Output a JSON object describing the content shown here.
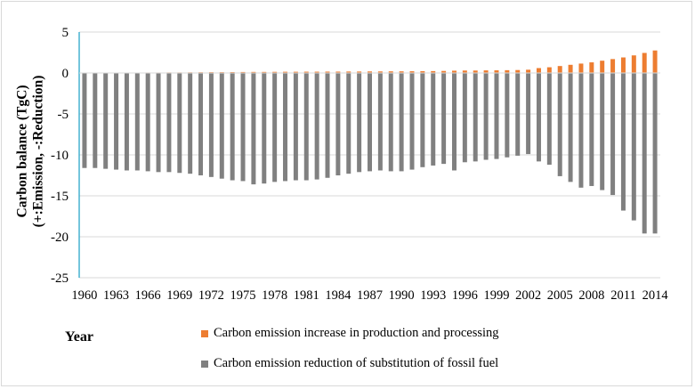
{
  "chart_data": {
    "type": "bar",
    "ylabel_line1": "Carbon balance (TgC)",
    "ylabel_line2": "(+:Emission, -:Reduction)",
    "xlabel": "Year",
    "ylim": [
      -25,
      5
    ],
    "yticks": [
      5,
      0,
      -5,
      -10,
      -15,
      -20,
      -25
    ],
    "x": [
      1960,
      1961,
      1962,
      1963,
      1964,
      1965,
      1966,
      1967,
      1968,
      1969,
      1970,
      1971,
      1972,
      1973,
      1974,
      1975,
      1976,
      1977,
      1978,
      1979,
      1980,
      1981,
      1982,
      1983,
      1984,
      1985,
      1986,
      1987,
      1988,
      1989,
      1990,
      1991,
      1992,
      1993,
      1994,
      1995,
      1996,
      1997,
      1998,
      1999,
      2000,
      2001,
      2002,
      2003,
      2004,
      2005,
      2006,
      2007,
      2008,
      2009,
      2010,
      2011,
      2012,
      2013,
      2014
    ],
    "x_tick_labels": [
      "1960",
      "1963",
      "1966",
      "1969",
      "1972",
      "1975",
      "1978",
      "1981",
      "1984",
      "1987",
      "1990",
      "1993",
      "1996",
      "1999",
      "2002",
      "2005",
      "2008",
      "2011",
      "2014"
    ],
    "series": [
      {
        "name": "Carbon emission increase in production and processing",
        "color": "#ed7d31",
        "values": [
          0.03,
          0.03,
          0.04,
          0.04,
          0.05,
          0.05,
          0.06,
          0.06,
          0.07,
          0.07,
          0.08,
          0.09,
          0.1,
          0.1,
          0.11,
          0.12,
          0.13,
          0.13,
          0.14,
          0.15,
          0.15,
          0.16,
          0.16,
          0.17,
          0.17,
          0.18,
          0.18,
          0.19,
          0.19,
          0.2,
          0.2,
          0.21,
          0.22,
          0.23,
          0.25,
          0.28,
          0.3,
          0.3,
          0.32,
          0.33,
          0.34,
          0.36,
          0.4,
          0.6,
          0.7,
          0.85,
          1.0,
          1.15,
          1.3,
          1.5,
          1.7,
          1.9,
          2.15,
          2.45,
          2.75
        ]
      },
      {
        "name": "Carbon emission reduction  of substitution of fossil fuel",
        "color": "#808080",
        "values": [
          -11.6,
          -11.6,
          -11.7,
          -11.8,
          -11.9,
          -11.9,
          -12.0,
          -12.1,
          -12.1,
          -12.2,
          -12.3,
          -12.5,
          -12.7,
          -12.9,
          -13.1,
          -13.2,
          -13.6,
          -13.5,
          -13.3,
          -13.2,
          -13.1,
          -13.1,
          -13.0,
          -12.8,
          -12.5,
          -12.3,
          -12.1,
          -12.0,
          -11.9,
          -12.0,
          -12.0,
          -11.8,
          -11.5,
          -11.3,
          -11.1,
          -11.9,
          -10.9,
          -10.8,
          -10.6,
          -10.5,
          -10.3,
          -10.1,
          -9.9,
          -10.8,
          -11.2,
          -12.6,
          -13.3,
          -14.0,
          -13.8,
          -14.3,
          -14.9,
          -16.8,
          -18.0,
          -19.6,
          -19.6
        ]
      }
    ],
    "legend_position": "bottom"
  }
}
